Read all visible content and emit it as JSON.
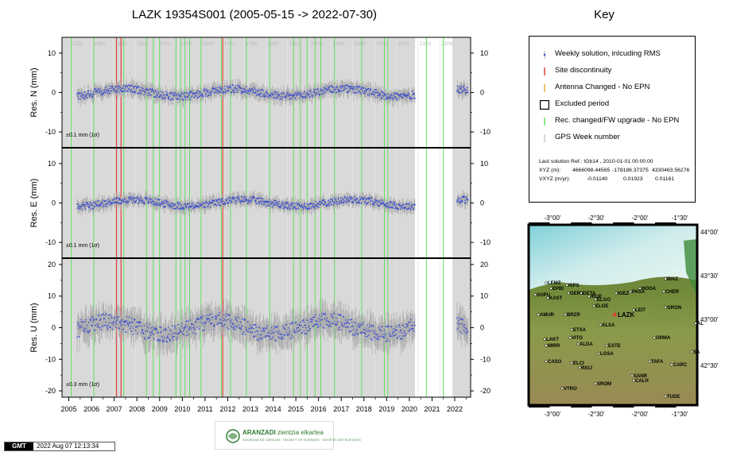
{
  "title": "LAZK 19354S001 (2005-05-15 -> 2022-07-30)",
  "key_title": "Key",
  "chart_data": [
    {
      "type": "scatter",
      "ylabel": "Res. N (mm)",
      "ylim": [
        -14,
        14
      ],
      "yticks": [
        -10,
        0,
        10
      ],
      "annotation": "±0.1 mm (1σ)",
      "amp": 1.6,
      "noise": 1.0,
      "seed": 11
    },
    {
      "type": "scatter",
      "ylabel": "Res. E (mm)",
      "ylim": [
        -14,
        14
      ],
      "yticks": [
        -10,
        0,
        10
      ],
      "annotation": "±0.1 mm (1σ)",
      "amp": 1.4,
      "noise": 0.9,
      "seed": 23
    },
    {
      "type": "scatter",
      "ylabel": "Res. U (mm)",
      "ylim": [
        -22,
        22
      ],
      "yticks": [
        -20,
        -10,
        0,
        10,
        20
      ],
      "annotation": "±0.3 mm (1σ)",
      "amp": 3.5,
      "noise": 2.6,
      "seed": 37
    }
  ],
  "x_axis": {
    "range": [
      2004.7,
      2022.7
    ],
    "year_ticks": [
      "2005",
      "2006",
      "2007",
      "2008",
      "2009",
      "2010",
      "2011",
      "2012",
      "2013",
      "2014",
      "2015",
      "2016",
      "2017",
      "2018",
      "2019",
      "2020",
      "2021",
      "2022"
    ],
    "gps_week_labels": [
      "1350",
      "1400",
      "1450",
      "1500",
      "1550",
      "1600",
      "1650",
      "1700",
      "1750",
      "1800",
      "1850",
      "1900",
      "1950",
      "2000",
      "2050",
      "2100",
      "2150",
      "2200"
    ],
    "data_start": 2005.37,
    "data_end": 2022.58,
    "gap": [
      2020.25,
      2022.1
    ],
    "excluded": [
      2020.25,
      2021.9
    ]
  },
  "site_discontinuities": [
    2007.1,
    2007.3,
    2011.78
  ],
  "receiver_changes": [
    2005.1,
    2006.1,
    2007.42,
    2008.42,
    2008.72,
    2009.0,
    2009.72,
    2009.92,
    2010.12,
    2010.32,
    2010.82,
    2011.72,
    2012.12,
    2012.82,
    2013.85,
    2014.9,
    2015.2,
    2015.5,
    2015.85,
    2016.1,
    2016.7,
    2017.9,
    2018.9,
    2019.05,
    2020.75,
    2021.5
  ],
  "key": {
    "items": [
      {
        "label": "Weekly solution, inlcuding RMS",
        "symbol": "dot",
        "color": "#2a3fd6"
      },
      {
        "label": "Site discontinuity",
        "symbol": "vline",
        "color": "#e0403a"
      },
      {
        "label": "Antenna Changed - No EPN",
        "symbol": "vline",
        "color": "#e9a83a"
      },
      {
        "label": "Excluded period",
        "symbol": "box",
        "color": "#000000"
      },
      {
        "label": "Rec. changed/FW upgrade - No EPN",
        "symbol": "vline",
        "color": "#5fe05a"
      },
      {
        "label": "GPS Week number",
        "symbol": "vline",
        "color": "#c8c8c8"
      }
    ],
    "last_solution": "Last solution Ref.: IGb14 , 2010-01-01 00:00:00",
    "xyz_label": "XYZ (m):",
    "xyz_values": [
      "4666098.44565",
      "-178186.37375",
      "4330463.56276"
    ],
    "vxyz_label": "VXYZ (m/yr):",
    "vxyz_values": [
      "-0.01140",
      "0.01923",
      "0.01161"
    ]
  },
  "map": {
    "top_labels": [
      "-3°00'",
      "-2°30'",
      "-2°00'",
      "-1°30'"
    ],
    "bottom_labels": [
      "-3°00'",
      "-2°30'",
      "-2°00'",
      "-1°30'"
    ],
    "right_labels": [
      "44°00'",
      "43°30'",
      "43°00'",
      "42°30'"
    ],
    "target_station": "LAZK",
    "stations": [
      "EPBI",
      "LEMZ",
      "SOPU",
      "KAST",
      "GERN",
      "ISPS",
      "GETA",
      "IRUE",
      "ELGO",
      "IGEZ",
      "PASA",
      "HOOA",
      "BIAZ",
      "CHER",
      "ELGE",
      "LEIT",
      "GRON",
      "AMUR",
      "BRZR",
      "ALSA",
      "ETXA",
      "VITO",
      "ALDA",
      "ORMA",
      "LAKT",
      "MIRR",
      "ESTE",
      "LOSA",
      "CASO",
      "ELCI",
      "RIOJ",
      "TAFA",
      "CARC",
      "SANR",
      "CALH",
      "SROM",
      "VTRO",
      "TUDE",
      "AL",
      "SA"
    ]
  },
  "footer": {
    "gmt": "GMT",
    "date": "2022 Aug 07 12:13:34",
    "org": "ARANZADI",
    "org_tagline": "zientzia elkartea",
    "org_sub": "SOCIEDAD DE CIENCIAS · SOCIETY OF SCIENCES · SOCIÉTÉ DES SCIENCES"
  },
  "colors": {
    "panel_bg": "#d9d9d9",
    "rms": "#a8a8a8",
    "points": "#2a3fd6",
    "discontinuity": "#e0403a",
    "receiver": "#5fe05a",
    "gps_week": "#c8c8c8"
  }
}
